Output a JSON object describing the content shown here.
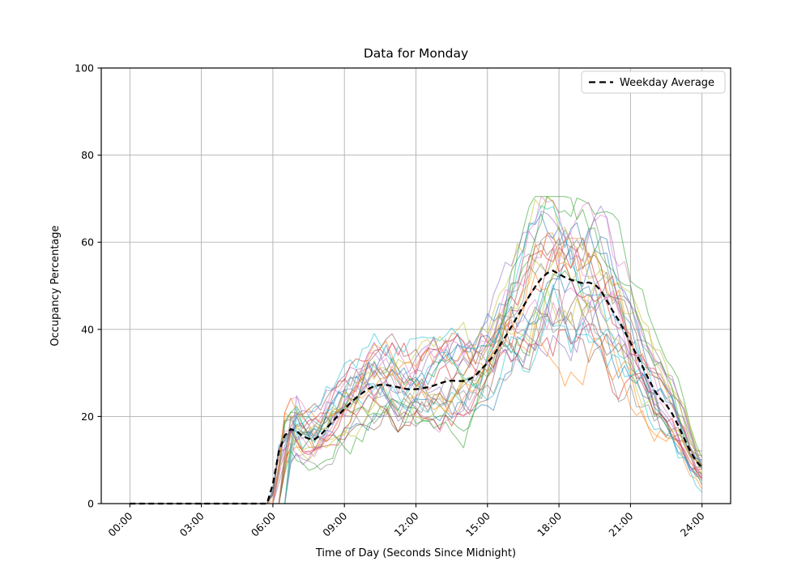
{
  "title": "Data for Monday",
  "axes": {
    "xlabel": "Time of Day (Seconds Since Midnight)",
    "ylabel": "Occupancy Percentage"
  },
  "legend": {
    "label": "Weekday Average",
    "line_color": "#000000",
    "line_style": "dashed",
    "position": "upper right"
  },
  "colors": {
    "grid": "#b0b0b0",
    "spine": "#000000",
    "background": "#ffffff",
    "average_line": "#000000",
    "trace_palette": [
      "#1f77b4",
      "#ff7f0e",
      "#2ca02c",
      "#d62728",
      "#9467bd",
      "#8c564b",
      "#e377c2",
      "#7f7f7f",
      "#bcbd22",
      "#17becf"
    ]
  },
  "chart_data": {
    "type": "line",
    "title": "Data for Monday",
    "xlabel": "Time of Day (Seconds Since Midnight)",
    "ylabel": "Occupancy Percentage",
    "grid": true,
    "legend_position": "upper right",
    "ylim": [
      0,
      100
    ],
    "y_ticks": [
      0,
      20,
      40,
      60,
      80,
      100
    ],
    "x_tick_hours": [
      0,
      3,
      6,
      9,
      12,
      15,
      18,
      21,
      24
    ],
    "x_tick_labels": [
      "00:00",
      "03:00",
      "06:00",
      "09:00",
      "12:00",
      "15:00",
      "18:00",
      "21:00",
      "24:00"
    ],
    "x_range_hours": [
      0,
      24
    ],
    "x_margin_fraction": 0.05,
    "average_series": {
      "name": "Weekday Average",
      "style": "dashed",
      "color": "#000000",
      "points_hour_value": [
        [
          0,
          0
        ],
        [
          5.75,
          0
        ],
        [
          5.9,
          1.5
        ],
        [
          6.05,
          6
        ],
        [
          6.2,
          11
        ],
        [
          6.4,
          14.8
        ],
        [
          6.6,
          16.5
        ],
        [
          6.8,
          17.3
        ],
        [
          7.0,
          16.6
        ],
        [
          7.2,
          15.6
        ],
        [
          7.5,
          14.9
        ],
        [
          7.7,
          14.6
        ],
        [
          7.95,
          15.4
        ],
        [
          8.2,
          17
        ],
        [
          8.5,
          18.8
        ],
        [
          8.8,
          20.6
        ],
        [
          9.1,
          22.3
        ],
        [
          9.4,
          23.9
        ],
        [
          9.7,
          25.2
        ],
        [
          10.0,
          26.3
        ],
        [
          10.3,
          27.1
        ],
        [
          10.6,
          27.4
        ],
        [
          10.9,
          27.1
        ],
        [
          11.2,
          26.8
        ],
        [
          11.5,
          26.4
        ],
        [
          11.8,
          26.2
        ],
        [
          12.1,
          26.3
        ],
        [
          12.4,
          26.6
        ],
        [
          12.7,
          27.0
        ],
        [
          13.0,
          27.6
        ],
        [
          13.3,
          28.1
        ],
        [
          13.6,
          28.3
        ],
        [
          13.9,
          28.0
        ],
        [
          14.2,
          28.4
        ],
        [
          14.5,
          29.4
        ],
        [
          14.75,
          30.9
        ],
        [
          15.0,
          32.3
        ],
        [
          15.25,
          34.0
        ],
        [
          15.5,
          36.2
        ],
        [
          15.75,
          38.3
        ],
        [
          16.0,
          40.6
        ],
        [
          16.25,
          42.9
        ],
        [
          16.5,
          45.2
        ],
        [
          16.75,
          47.6
        ],
        [
          17.0,
          49.8
        ],
        [
          17.25,
          51.6
        ],
        [
          17.5,
          52.9
        ],
        [
          17.7,
          53.6
        ],
        [
          17.9,
          53.1
        ],
        [
          18.1,
          52.3
        ],
        [
          18.4,
          51.6
        ],
        [
          18.7,
          51.0
        ],
        [
          19.0,
          50.6
        ],
        [
          19.3,
          50.8
        ],
        [
          19.6,
          50.1
        ],
        [
          19.85,
          48.2
        ],
        [
          20.1,
          45.6
        ],
        [
          20.35,
          43.4
        ],
        [
          20.6,
          41.2
        ],
        [
          20.85,
          38.6
        ],
        [
          21.1,
          35.8
        ],
        [
          21.35,
          33.2
        ],
        [
          21.6,
          30.4
        ],
        [
          21.85,
          27.6
        ],
        [
          22.1,
          25.0
        ],
        [
          22.35,
          23.5
        ],
        [
          22.6,
          22.2
        ],
        [
          22.85,
          19.6
        ],
        [
          23.1,
          16.8
        ],
        [
          23.35,
          13.8
        ],
        [
          23.6,
          11.0
        ],
        [
          23.8,
          9.4
        ],
        [
          24.0,
          8.2
        ]
      ]
    },
    "individual_traces": {
      "count": 30,
      "alpha": 0.55,
      "line_width": 1.1,
      "interval_hours": 0.25,
      "value_range_at_peak": [
        35,
        70
      ],
      "start_hour_range": [
        5.75,
        6.5
      ],
      "seed": 12,
      "colors": [
        "#1f77b4",
        "#ff7f0e",
        "#2ca02c",
        "#d62728",
        "#9467bd",
        "#8c564b",
        "#e377c2",
        "#7f7f7f",
        "#bcbd22",
        "#17becf"
      ]
    }
  }
}
